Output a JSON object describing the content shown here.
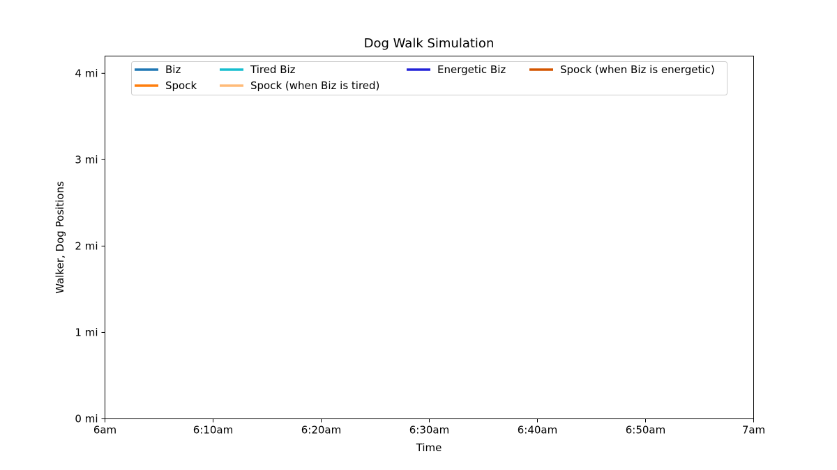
{
  "chart_data": {
    "type": "line",
    "title": "Dog Walk Simulation",
    "xlabel": "Time",
    "ylabel": "Walker, Dog Positions",
    "x_ticks": [
      "6am",
      "6:10am",
      "6:20am",
      "6:30am",
      "6:40am",
      "6:50am",
      "7am"
    ],
    "y_ticks": [
      "0 mi",
      "1 mi",
      "2 mi",
      "3 mi",
      "4 mi"
    ],
    "xlim": [
      "6am",
      "7am"
    ],
    "ylim": [
      0,
      4.2
    ],
    "grid": false,
    "legend_position": "top",
    "series": [
      {
        "name": "Biz",
        "color": "#1f77b4",
        "values": []
      },
      {
        "name": "Spock",
        "color": "#ff7f0e",
        "values": []
      },
      {
        "name": "Tired Biz",
        "color": "#17becf",
        "values": []
      },
      {
        "name": "Spock (when Biz is tired)",
        "color": "#ffbb78",
        "values": []
      },
      {
        "name": "Energetic Biz",
        "color": "#2323d8",
        "values": []
      },
      {
        "name": "Spock (when Biz is energetic)",
        "color": "#d45500",
        "values": []
      }
    ]
  }
}
